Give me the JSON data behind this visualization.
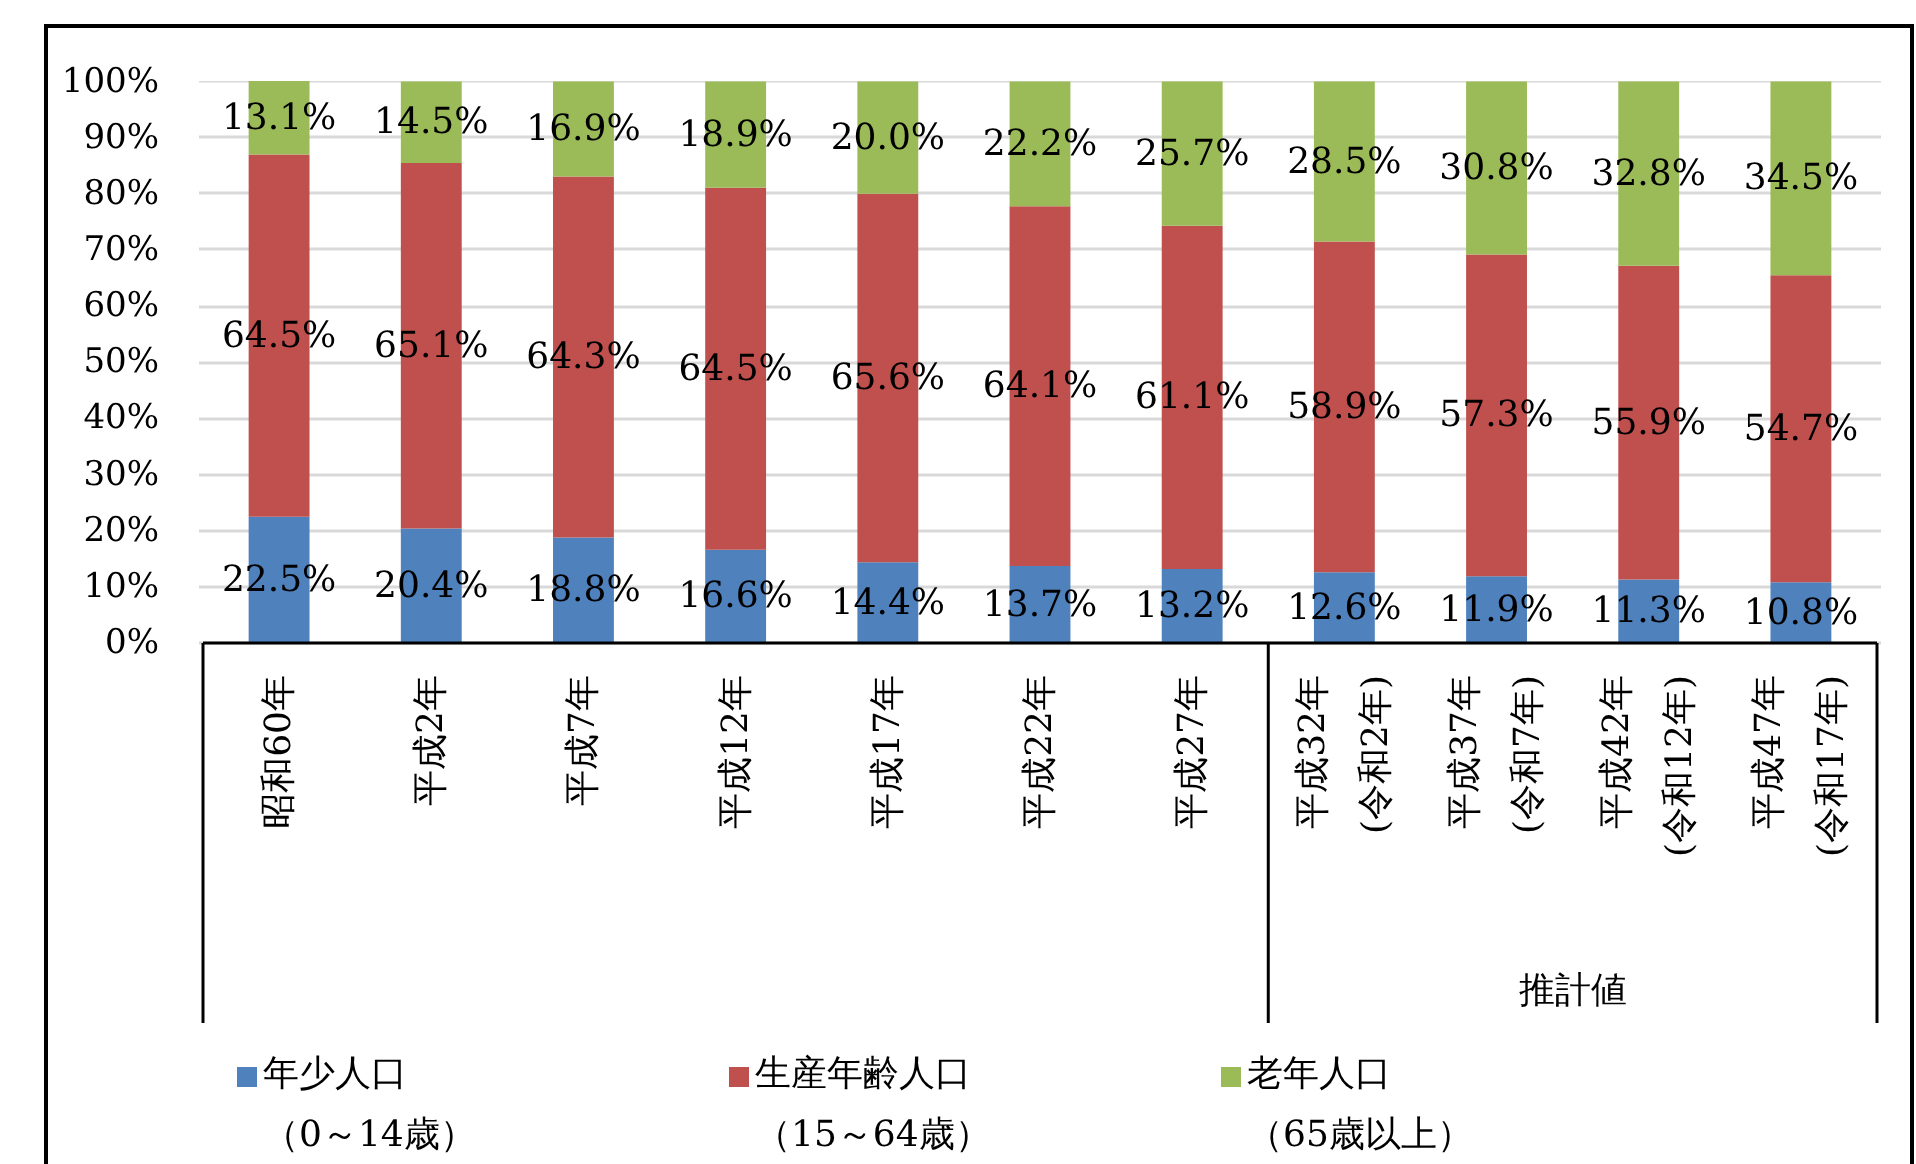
{
  "chart_data": {
    "type": "bar",
    "stacked": true,
    "categories": [
      "昭和60年",
      "平成2年",
      "平成7年",
      "平成12年",
      "平成17年",
      "平成22年",
      "平成27年",
      "平成32年\n(令和2年)",
      "平成37年\n(令和7年)",
      "平成42年\n(令和12年)",
      "平成47年\n(令和17年)"
    ],
    "series": [
      {
        "name": "年少人口（0～14歳）",
        "color": "#4f81bd",
        "values": [
          22.5,
          20.4,
          18.8,
          16.6,
          14.4,
          13.7,
          13.2,
          12.6,
          11.9,
          11.3,
          10.8
        ],
        "value_labels": [
          "22.5%",
          "20.4%",
          "18.8%",
          "16.6%",
          "14.4%",
          "13.7%",
          "13.2%",
          "12.6%",
          "11.9%",
          "11.3%",
          "10.8%"
        ]
      },
      {
        "name": "生産年齢人口（15～64歳）",
        "color": "#c0504d",
        "values": [
          64.5,
          65.1,
          64.3,
          64.5,
          65.6,
          64.1,
          61.1,
          58.9,
          57.3,
          55.9,
          54.7
        ],
        "value_labels": [
          "64.5%",
          "65.1%",
          "64.3%",
          "64.5%",
          "65.6%",
          "64.1%",
          "61.1%",
          "58.9%",
          "57.3%",
          "55.9%",
          "54.7%"
        ]
      },
      {
        "name": "老年人口（65歳以上）",
        "color": "#9bbb59",
        "values": [
          13.1,
          14.5,
          16.9,
          18.9,
          20.0,
          22.2,
          25.7,
          28.5,
          30.8,
          32.8,
          34.5
        ],
        "value_labels": [
          "13.1%",
          "14.5%",
          "16.9%",
          "18.9%",
          "20.0%",
          "22.2%",
          "25.7%",
          "28.5%",
          "30.8%",
          "32.8%",
          "34.5%"
        ]
      }
    ],
    "ylim": [
      0,
      100.1
    ],
    "yticks": [
      {
        "value": 0,
        "label": "0%"
      },
      {
        "value": 10,
        "label": "10%"
      },
      {
        "value": 20,
        "label": "20%"
      },
      {
        "value": 30,
        "label": "30%"
      },
      {
        "value": 40,
        "label": "40%"
      },
      {
        "value": 50,
        "label": "50%"
      },
      {
        "value": 60,
        "label": "60%"
      },
      {
        "value": 70,
        "label": "70%"
      },
      {
        "value": 80,
        "label": "80%"
      },
      {
        "value": 90,
        "label": "90%"
      },
      {
        "value": 100,
        "label": "100%"
      }
    ],
    "grid": "y",
    "legend": "bottom",
    "annotations": [
      "推計値"
    ]
  }
}
